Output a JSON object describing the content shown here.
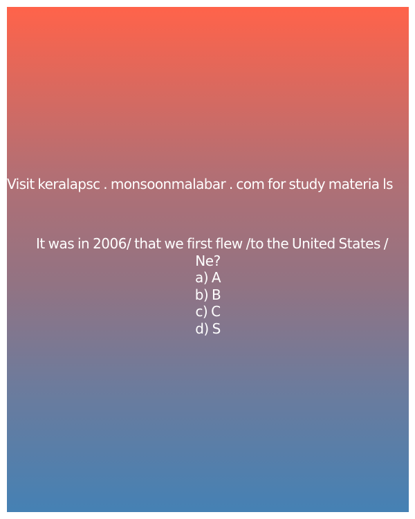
{
  "site_text": "Visit keralapsc . monsoonmalabar . com for study materia ls",
  "question": {
    "line1": "It was in 2006/ that we first flew /to the United States /",
    "line2": "Ne?"
  },
  "options": [
    "a) A",
    "b) B",
    "c) C",
    "d) S"
  ]
}
